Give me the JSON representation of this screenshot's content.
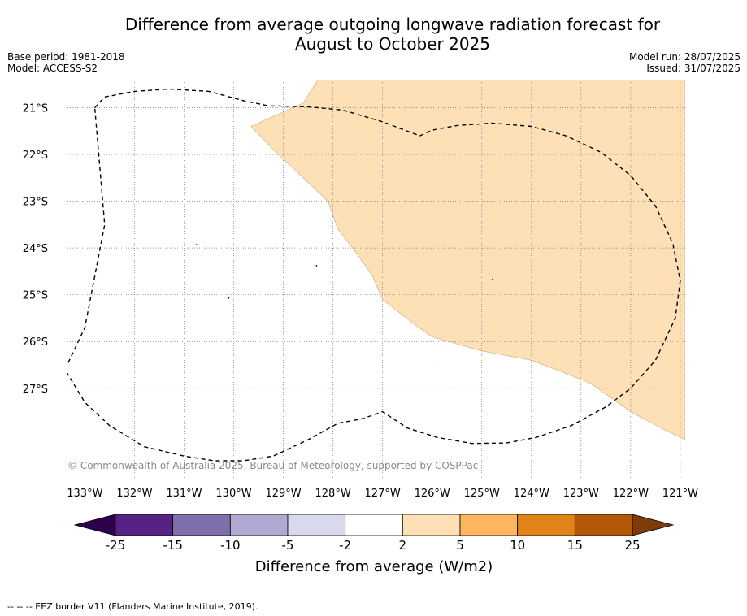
{
  "title_line1": "Difference from average outgoing longwave radiation forecast for",
  "title_line2": "August to October 2025",
  "base_period": "Base period: 1981-2018",
  "model": "Model: ACCESS-S2",
  "model_run": "Model run: 28/07/2025",
  "issued": "Issued: 31/07/2025",
  "map": {
    "lon_range": [
      -133.35,
      -120.9
    ],
    "lat_range": [
      -28.95,
      -20.4
    ],
    "lon_ticks": [
      -133,
      -132,
      -131,
      -130,
      -129,
      -128,
      -127,
      -126,
      -125,
      -124,
      -123,
      -122,
      -121
    ],
    "lon_tick_labels": [
      "133°W",
      "132°W",
      "131°W",
      "130°W",
      "129°W",
      "128°W",
      "127°W",
      "126°W",
      "125°W",
      "124°W",
      "123°W",
      "122°W",
      "121°W"
    ],
    "lat_ticks": [
      -21,
      -22,
      -23,
      -24,
      -25,
      -26,
      -27
    ],
    "lat_tick_labels": [
      "21°S",
      "22°S",
      "23°S",
      "24°S",
      "25°S",
      "26°S",
      "27°S"
    ],
    "grid": true,
    "anomaly_fill_color": "#fde0b6",
    "anomaly_region": [
      [
        -128.3,
        -20.4
      ],
      [
        -120.9,
        -20.4
      ],
      [
        -120.9,
        -28.1
      ],
      [
        -121.3,
        -27.9
      ],
      [
        -122.0,
        -27.5
      ],
      [
        -122.8,
        -26.9
      ],
      [
        -123.5,
        -26.6
      ],
      [
        -124.0,
        -26.4
      ],
      [
        -125.0,
        -26.2
      ],
      [
        -126.0,
        -25.9
      ],
      [
        -126.4,
        -25.6
      ],
      [
        -127.0,
        -25.1
      ],
      [
        -127.2,
        -24.6
      ],
      [
        -127.6,
        -24.0
      ],
      [
        -127.9,
        -23.6
      ],
      [
        -128.1,
        -23.0
      ],
      [
        -128.8,
        -22.3
      ],
      [
        -129.2,
        -21.9
      ],
      [
        -129.65,
        -21.4
      ],
      [
        -128.6,
        -20.9
      ]
    ],
    "eez_border": [
      [
        -132.8,
        -21.0
      ],
      [
        -132.6,
        -20.77
      ],
      [
        -132.0,
        -20.65
      ],
      [
        -131.3,
        -20.6
      ],
      [
        -130.5,
        -20.65
      ],
      [
        -129.8,
        -20.85
      ],
      [
        -129.3,
        -20.96
      ],
      [
        -128.5,
        -20.98
      ],
      [
        -127.8,
        -21.05
      ],
      [
        -127.0,
        -21.3
      ],
      [
        -126.25,
        -21.6
      ],
      [
        -126.0,
        -21.48
      ],
      [
        -125.5,
        -21.38
      ],
      [
        -124.8,
        -21.33
      ],
      [
        -124.0,
        -21.4
      ],
      [
        -123.3,
        -21.6
      ],
      [
        -122.6,
        -21.95
      ],
      [
        -122.0,
        -22.45
      ],
      [
        -121.5,
        -23.1
      ],
      [
        -121.15,
        -23.9
      ],
      [
        -121.0,
        -24.7
      ],
      [
        -121.1,
        -25.5
      ],
      [
        -121.5,
        -26.4
      ],
      [
        -122.0,
        -27.0
      ],
      [
        -122.5,
        -27.4
      ],
      [
        -123.2,
        -27.8
      ],
      [
        -123.9,
        -28.05
      ],
      [
        -124.5,
        -28.17
      ],
      [
        -125.2,
        -28.18
      ],
      [
        -125.9,
        -28.05
      ],
      [
        -126.5,
        -27.85
      ],
      [
        -127.0,
        -27.5
      ],
      [
        -127.4,
        -27.65
      ],
      [
        -127.9,
        -27.75
      ],
      [
        -128.5,
        -28.1
      ],
      [
        -129.2,
        -28.45
      ],
      [
        -129.8,
        -28.55
      ],
      [
        -130.4,
        -28.55
      ],
      [
        -131.0,
        -28.45
      ],
      [
        -131.8,
        -28.25
      ],
      [
        -132.5,
        -27.8
      ],
      [
        -133.0,
        -27.3
      ],
      [
        -133.4,
        -26.6
      ],
      [
        -133.0,
        -25.7
      ],
      [
        -132.6,
        -23.5
      ],
      [
        -132.8,
        -21.0
      ]
    ],
    "islands": [
      {
        "lon": -130.75,
        "lat": -23.93
      },
      {
        "lon": -128.33,
        "lat": -24.38
      },
      {
        "lon": -124.78,
        "lat": -24.67
      },
      {
        "lon": -130.1,
        "lat": -25.07
      }
    ]
  },
  "copyright": "© Commonwealth of Australia 2025, Bureau of Meteorology, supported by COSPPac",
  "colorbar": {
    "label": "Difference from average (W/m2)",
    "tick_labels": [
      "-25",
      "-15",
      "-10",
      "-5",
      "-2",
      "2",
      "5",
      "10",
      "15",
      "25"
    ],
    "colors": [
      "#562384",
      "#7f6fab",
      "#b1a9d2",
      "#d9d9ec",
      "#ffffff",
      "#fde0b6",
      "#fdb55f",
      "#e2831a",
      "#b35807"
    ],
    "under_color": "#2d004b",
    "over_color": "#7f3b08"
  },
  "footer_note": "--  --  -- EEZ border V11 (Flanders Marine Institute, 2019)."
}
